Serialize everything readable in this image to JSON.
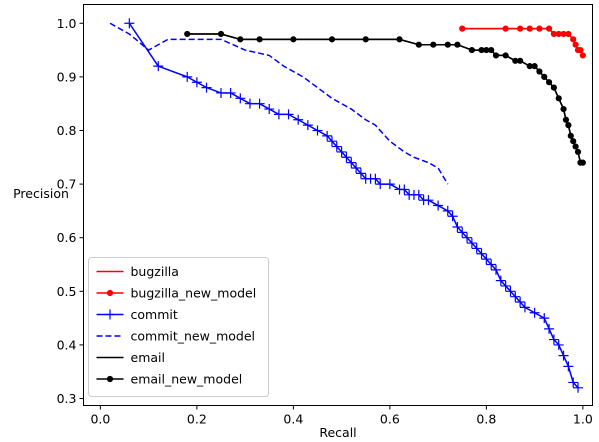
{
  "chart_data": {
    "type": "line",
    "title": "",
    "xlabel": "Recall",
    "ylabel": "Precision",
    "xlim": [
      -0.035,
      1.02
    ],
    "ylim": [
      0.287,
      1.035
    ],
    "xticks": [
      0.0,
      0.2,
      0.4,
      0.6,
      0.8,
      1.0
    ],
    "yticks": [
      0.3,
      0.4,
      0.5,
      0.6,
      0.7,
      0.8,
      0.9,
      1.0
    ],
    "grid": false,
    "legend_position": "lower-left",
    "series": [
      {
        "name": "bugzilla",
        "color": "#ff0000",
        "style": "solid",
        "marker": "none",
        "x": [
          0.75,
          0.84,
          0.87,
          0.89,
          0.91,
          0.93,
          0.94,
          0.95,
          0.96,
          0.97,
          0.98,
          0.985,
          0.99,
          0.995,
          1.0
        ],
        "y": [
          0.99,
          0.99,
          0.99,
          0.99,
          0.99,
          0.99,
          0.98,
          0.98,
          0.98,
          0.98,
          0.97,
          0.96,
          0.95,
          0.95,
          0.94
        ]
      },
      {
        "name": "bugzilla_new_model",
        "color": "#ff0000",
        "style": "solid",
        "marker": "circle",
        "x": [
          0.75,
          0.84,
          0.87,
          0.89,
          0.91,
          0.93,
          0.94,
          0.95,
          0.96,
          0.97,
          0.98,
          0.985,
          0.99,
          0.995,
          1.0
        ],
        "y": [
          0.99,
          0.99,
          0.99,
          0.99,
          0.99,
          0.99,
          0.98,
          0.98,
          0.98,
          0.98,
          0.97,
          0.96,
          0.95,
          0.95,
          0.94
        ]
      },
      {
        "name": "commit",
        "color": "#0000ff",
        "style": "solid",
        "marker": "plus",
        "x": [
          0.06,
          0.12,
          0.18,
          0.2,
          0.22,
          0.25,
          0.27,
          0.29,
          0.31,
          0.33,
          0.35,
          0.37,
          0.39,
          0.41,
          0.43,
          0.45,
          0.47,
          0.48,
          0.49,
          0.5,
          0.51,
          0.52,
          0.53,
          0.54,
          0.55,
          0.56,
          0.57,
          0.58,
          0.6,
          0.62,
          0.63,
          0.64,
          0.65,
          0.66,
          0.67,
          0.68,
          0.7,
          0.72,
          0.73,
          0.74,
          0.75,
          0.76,
          0.77,
          0.78,
          0.79,
          0.8,
          0.81,
          0.82,
          0.83,
          0.84,
          0.85,
          0.86,
          0.87,
          0.88,
          0.9,
          0.92,
          0.93,
          0.94,
          0.95,
          0.96,
          0.97,
          0.98,
          0.99
        ],
        "y": [
          1.0,
          0.92,
          0.9,
          0.89,
          0.88,
          0.87,
          0.87,
          0.86,
          0.85,
          0.85,
          0.84,
          0.83,
          0.83,
          0.82,
          0.81,
          0.8,
          0.79,
          0.78,
          0.77,
          0.76,
          0.75,
          0.74,
          0.73,
          0.72,
          0.71,
          0.71,
          0.71,
          0.7,
          0.7,
          0.69,
          0.69,
          0.68,
          0.68,
          0.68,
          0.67,
          0.67,
          0.66,
          0.65,
          0.64,
          0.62,
          0.61,
          0.6,
          0.59,
          0.58,
          0.57,
          0.56,
          0.55,
          0.54,
          0.52,
          0.51,
          0.5,
          0.49,
          0.48,
          0.47,
          0.46,
          0.45,
          0.43,
          0.41,
          0.4,
          0.38,
          0.36,
          0.33,
          0.32
        ]
      },
      {
        "name": "commit_new_model",
        "color": "#0000ff",
        "style": "dashed",
        "marker": "none",
        "x": [
          0.02,
          0.06,
          0.1,
          0.14,
          0.18,
          0.25,
          0.3,
          0.35,
          0.38,
          0.42,
          0.45,
          0.48,
          0.52,
          0.55,
          0.57,
          0.6,
          0.63,
          0.65,
          0.68,
          0.7,
          0.72
        ],
        "y": [
          1.0,
          0.98,
          0.95,
          0.97,
          0.97,
          0.97,
          0.95,
          0.94,
          0.92,
          0.9,
          0.88,
          0.86,
          0.84,
          0.82,
          0.81,
          0.78,
          0.76,
          0.75,
          0.74,
          0.73,
          0.7
        ]
      },
      {
        "name": "email",
        "color": "#000000",
        "style": "solid",
        "marker": "none",
        "x": [
          0.18,
          0.25,
          0.29,
          0.33,
          0.4,
          0.48,
          0.55,
          0.62,
          0.66,
          0.69,
          0.72,
          0.74,
          0.77,
          0.79,
          0.8,
          0.81,
          0.82,
          0.84,
          0.86,
          0.87,
          0.89,
          0.9,
          0.91,
          0.92,
          0.93,
          0.94,
          0.95,
          0.96,
          0.965,
          0.97,
          0.975,
          0.98,
          0.985,
          0.99,
          0.995,
          1.0
        ],
        "y": [
          0.98,
          0.98,
          0.97,
          0.97,
          0.97,
          0.97,
          0.97,
          0.97,
          0.96,
          0.96,
          0.96,
          0.96,
          0.95,
          0.95,
          0.95,
          0.95,
          0.94,
          0.94,
          0.93,
          0.93,
          0.92,
          0.92,
          0.91,
          0.9,
          0.89,
          0.88,
          0.86,
          0.84,
          0.82,
          0.81,
          0.79,
          0.78,
          0.77,
          0.76,
          0.74,
          0.74
        ]
      },
      {
        "name": "email_new_model",
        "color": "#000000",
        "style": "solid",
        "marker": "circle",
        "x": [
          0.18,
          0.25,
          0.29,
          0.33,
          0.4,
          0.48,
          0.55,
          0.62,
          0.66,
          0.69,
          0.72,
          0.74,
          0.77,
          0.79,
          0.8,
          0.81,
          0.82,
          0.84,
          0.86,
          0.87,
          0.89,
          0.9,
          0.91,
          0.92,
          0.93,
          0.94,
          0.95,
          0.96,
          0.965,
          0.97,
          0.975,
          0.98,
          0.985,
          0.99,
          0.995,
          1.0
        ],
        "y": [
          0.98,
          0.98,
          0.97,
          0.97,
          0.97,
          0.97,
          0.97,
          0.97,
          0.96,
          0.96,
          0.96,
          0.96,
          0.95,
          0.95,
          0.95,
          0.95,
          0.94,
          0.94,
          0.93,
          0.93,
          0.92,
          0.92,
          0.91,
          0.9,
          0.89,
          0.88,
          0.86,
          0.84,
          0.82,
          0.81,
          0.79,
          0.78,
          0.77,
          0.76,
          0.74,
          0.74
        ]
      }
    ]
  }
}
